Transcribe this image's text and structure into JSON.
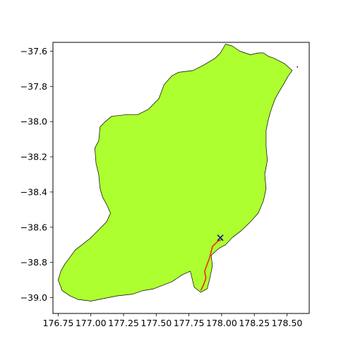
{
  "chart_data": {
    "type": "map",
    "title": "",
    "xlabel": "",
    "ylabel": "",
    "xlim": [
      176.71,
      178.67
    ],
    "ylim": [
      -39.09,
      -37.55
    ],
    "xticks": [
      176.75,
      177.0,
      177.25,
      177.5,
      177.75,
      178.0,
      178.25,
      178.5
    ],
    "xtick_labels": [
      "176.75",
      "177.00",
      "177.25",
      "177.50",
      "177.75",
      "178.00",
      "178.25",
      "178.50"
    ],
    "yticks": [
      -37.6,
      -37.8,
      -38.0,
      -38.2,
      -38.4,
      -38.6,
      -38.8,
      -39.0
    ],
    "ytick_labels": [
      "−37.6",
      "−37.8",
      "−38.0",
      "−38.2",
      "−38.4",
      "−38.6",
      "−38.8",
      "−39.0"
    ],
    "region": {
      "fill": "#adff2f",
      "outline": "#000000",
      "boundary": [
        [
          178.54,
          -37.71
        ],
        [
          178.48,
          -37.67
        ],
        [
          178.4,
          -37.64
        ],
        [
          178.36,
          -37.63
        ],
        [
          178.32,
          -37.61
        ],
        [
          178.28,
          -37.61
        ],
        [
          178.22,
          -37.62
        ],
        [
          178.14,
          -37.6
        ],
        [
          178.08,
          -37.57
        ],
        [
          178.03,
          -37.56
        ],
        [
          177.99,
          -37.61
        ],
        [
          177.95,
          -37.64
        ],
        [
          177.86,
          -37.68
        ],
        [
          177.78,
          -37.71
        ],
        [
          177.67,
          -37.72
        ],
        [
          177.62,
          -37.74
        ],
        [
          177.56,
          -37.79
        ],
        [
          177.52,
          -37.87
        ],
        [
          177.44,
          -37.93
        ],
        [
          177.36,
          -37.96
        ],
        [
          177.28,
          -37.96
        ],
        [
          177.16,
          -37.97
        ],
        [
          177.11,
          -38.0
        ],
        [
          177.07,
          -38.03
        ],
        [
          177.06,
          -38.11
        ],
        [
          177.03,
          -38.15
        ],
        [
          177.04,
          -38.24
        ],
        [
          177.06,
          -38.3
        ],
        [
          177.07,
          -38.38
        ],
        [
          177.09,
          -38.43
        ],
        [
          177.12,
          -38.47
        ],
        [
          177.15,
          -38.52
        ],
        [
          177.12,
          -38.57
        ],
        [
          177.0,
          -38.66
        ],
        [
          176.88,
          -38.73
        ],
        [
          176.8,
          -38.81
        ],
        [
          176.77,
          -38.85
        ],
        [
          176.75,
          -38.9
        ],
        [
          176.78,
          -38.96
        ],
        [
          176.84,
          -38.99
        ],
        [
          176.9,
          -39.01
        ],
        [
          177.0,
          -39.02
        ],
        [
          177.2,
          -38.99
        ],
        [
          177.32,
          -38.98
        ],
        [
          177.4,
          -38.96
        ],
        [
          177.48,
          -38.95
        ],
        [
          177.55,
          -38.93
        ],
        [
          177.62,
          -38.91
        ],
        [
          177.7,
          -38.87
        ],
        [
          177.76,
          -38.85
        ],
        [
          177.79,
          -38.94
        ],
        [
          177.84,
          -38.97
        ],
        [
          177.89,
          -38.95
        ],
        [
          177.91,
          -38.89
        ],
        [
          177.93,
          -38.82
        ],
        [
          177.92,
          -38.76
        ],
        [
          177.98,
          -38.72
        ],
        [
          178.03,
          -38.7
        ],
        [
          178.08,
          -38.66
        ],
        [
          178.15,
          -38.62
        ],
        [
          178.22,
          -38.57
        ],
        [
          178.28,
          -38.52
        ],
        [
          178.32,
          -38.45
        ],
        [
          178.34,
          -38.38
        ],
        [
          178.33,
          -38.3
        ],
        [
          178.35,
          -38.22
        ],
        [
          178.34,
          -38.14
        ],
        [
          178.34,
          -38.05
        ],
        [
          178.36,
          -37.98
        ],
        [
          178.38,
          -37.93
        ],
        [
          178.41,
          -37.87
        ],
        [
          178.44,
          -37.83
        ],
        [
          178.48,
          -37.78
        ],
        [
          178.51,
          -37.74
        ]
      ]
    },
    "route": {
      "color": "#ff0000",
      "points": [
        [
          178.0,
          -38.67
        ],
        [
          177.97,
          -38.68
        ],
        [
          177.93,
          -38.71
        ],
        [
          177.91,
          -38.77
        ],
        [
          177.89,
          -38.81
        ],
        [
          177.87,
          -38.85
        ],
        [
          177.88,
          -38.89
        ],
        [
          177.86,
          -38.93
        ],
        [
          177.84,
          -38.96
        ]
      ]
    },
    "marker": {
      "symbol": "x",
      "color": "#00008b",
      "point": [
        177.99,
        -38.66
      ]
    },
    "islands": [
      [
        178.58,
        -37.69
      ]
    ]
  }
}
